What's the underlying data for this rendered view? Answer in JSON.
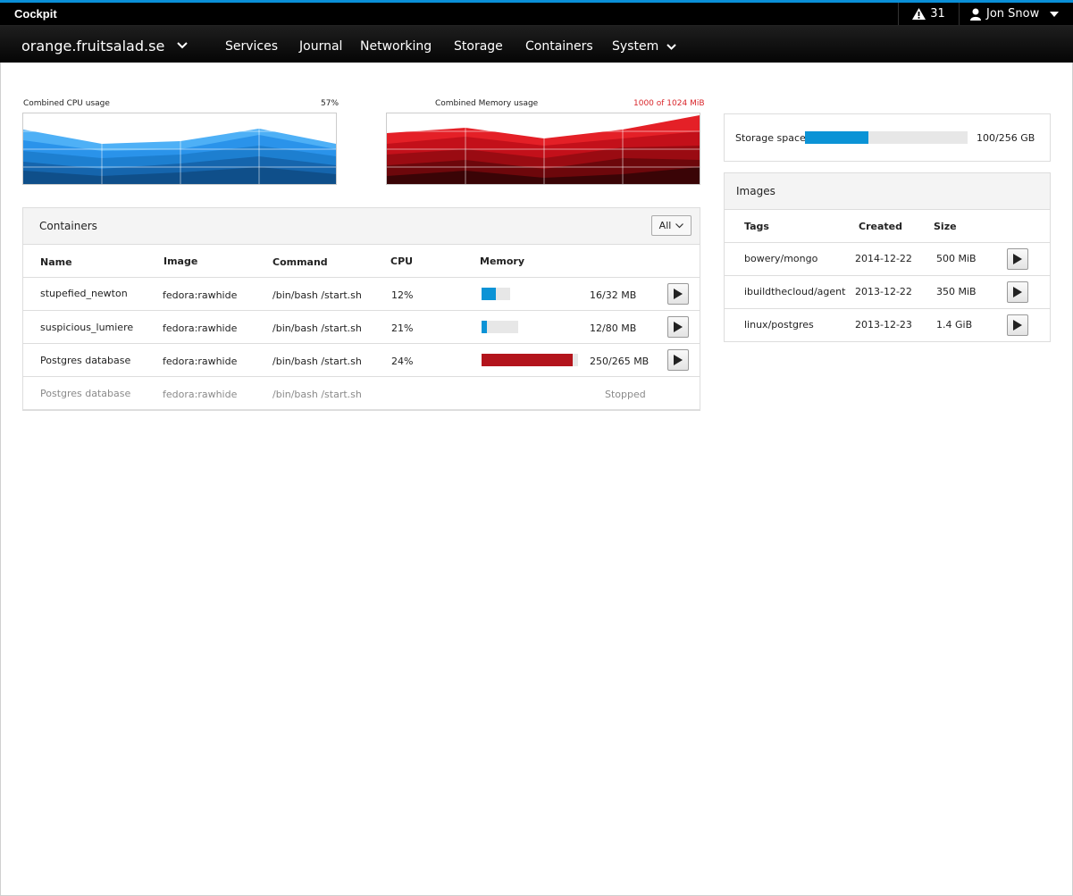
{
  "app": {
    "title": "Cockpit"
  },
  "header": {
    "alert_count": "31",
    "user_name": "Jon Snow",
    "host": "orange.fruitsalad.se",
    "nav": [
      "Services",
      "Journal",
      "Networking",
      "Storage",
      "Containers",
      "System"
    ]
  },
  "cpu": {
    "label": "Combined CPU usage",
    "value": "57%",
    "colors": [
      "#0f4f8a",
      "#1565ad",
      "#1d7fd0",
      "#2a93ea",
      "#4eb0f6"
    ]
  },
  "memory": {
    "label": "Combined Memory usage",
    "value": "1000 of 1024 MiB",
    "value_color": "#d9262b",
    "colors": [
      "#3a0406",
      "#6d070b",
      "#9a0b12",
      "#c3101a",
      "#e42027"
    ]
  },
  "storage": {
    "label": "Storage space",
    "value": "100/256 GB",
    "fraction": 0.39,
    "color": "#0b93d6"
  },
  "containers": {
    "title": "Containers",
    "filter": "All",
    "columns": [
      "Name",
      "Image",
      "Command",
      "CPU",
      "Memory"
    ],
    "rows": [
      {
        "name": "stupefied_newton",
        "image": "fedora:rawhide",
        "command": "/bin/bash /start.sh",
        "cpu": "12%",
        "memory": "16/32 MB",
        "mem_fraction": 0.5,
        "mem_color": "#0b93d6",
        "stopped": false
      },
      {
        "name": "suspicious_lumiere",
        "image": "fedora:rawhide",
        "command": "/bin/bash /start.sh",
        "cpu": "21%",
        "memory": "12/80 MB",
        "mem_fraction": 0.15,
        "mem_color": "#0b93d6",
        "stopped": false
      },
      {
        "name": "Postgres database",
        "image": "fedora:rawhide",
        "command": "/bin/bash /start.sh",
        "cpu": "24%",
        "memory": "250/265 MB",
        "mem_fraction": 0.94,
        "mem_color": "#b3141c",
        "stopped": false
      },
      {
        "name": "Postgres database",
        "image": "fedora:rawhide",
        "command": "/bin/bash /start.sh",
        "status": "Stopped",
        "stopped": true
      }
    ]
  },
  "images": {
    "title": "Images",
    "columns": [
      "Tags",
      "Created",
      "Size"
    ],
    "rows": [
      {
        "tag": "bowery/mongo",
        "created": "2014-12-22",
        "size": "500 MiB"
      },
      {
        "tag": "ibuildthecloud/agent",
        "created": "2013-12-22",
        "size": "350 MiB"
      },
      {
        "tag": "linux/postgres",
        "created": "2013-12-23",
        "size": "1.4 GiB"
      }
    ]
  }
}
